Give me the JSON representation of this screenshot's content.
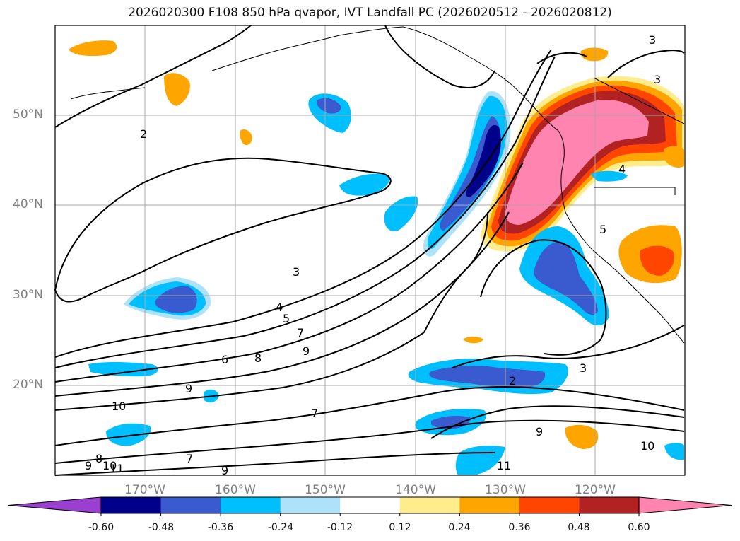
{
  "title": "2026020300 F108 850 hPa qvapor, IVT Landfall PC (2026020512 - 2026020812)",
  "lat_labels": [
    "50°N",
    "40°N",
    "30°N",
    "20°N"
  ],
  "lon_labels": [
    "170°W",
    "160°W",
    "150°W",
    "140°W",
    "130°W",
    "120°W"
  ],
  "colorbar": {
    "ticks": [
      "-0.60",
      "-0.48",
      "-0.36",
      "-0.24",
      "-0.12",
      "0.12",
      "0.24",
      "0.36",
      "0.48",
      "0.60"
    ],
    "colors": [
      "#9b3fd0",
      "#00008b",
      "#3a5bd0",
      "#00bfff",
      "#aee2fa",
      "#ffffff",
      "#ffec8b",
      "#ffa500",
      "#ff4500",
      "#b22222",
      "#ff85b0"
    ]
  },
  "contour_labels": [
    "3",
    "3",
    "2",
    "3",
    "4",
    "5",
    "7",
    "6",
    "8",
    "9",
    "9",
    "10",
    "9",
    "8",
    "10",
    "11",
    "7",
    "9",
    "7",
    "2",
    "3",
    "9",
    "10",
    "11",
    "5",
    "4"
  ]
}
